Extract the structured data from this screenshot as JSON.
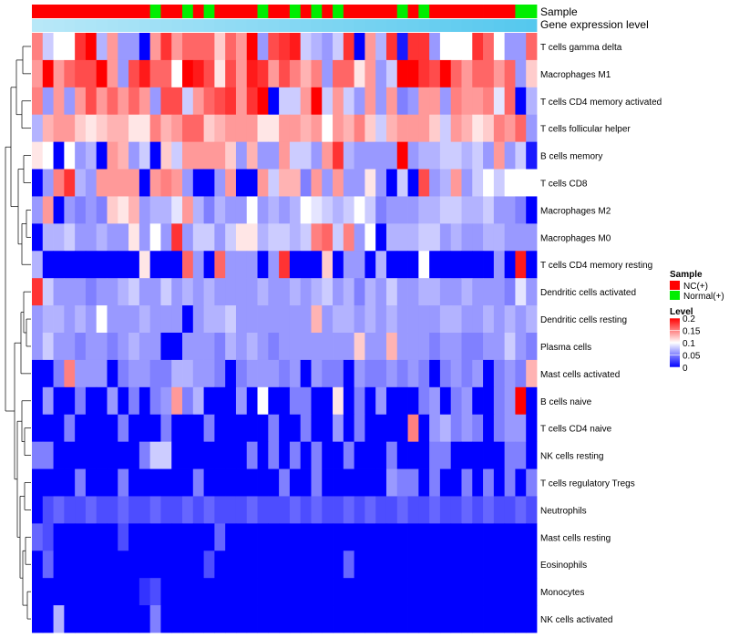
{
  "chart_data": {
    "type": "heatmap",
    "title": "",
    "annotation_labels": {
      "sample": "Sample",
      "gene_expression_level": "Gene expression level"
    },
    "legend": {
      "sample_title": "Sample",
      "sample_items": [
        {
          "label": "NC(+)",
          "color": "#ff0000"
        },
        {
          "label": "Normal(+)",
          "color": "#00ee00"
        }
      ],
      "level_title": "Level",
      "level_ticks": [
        "0.2",
        "0.15",
        "0.1",
        "0.05",
        "0"
      ],
      "level_tick_values": [
        0.2,
        0.15,
        0.1,
        0.05,
        0
      ]
    },
    "color_scale": {
      "min": 0,
      "mid": 0.1,
      "max": 0.2,
      "low": "#0000ff",
      "mid_color": "#ffffff",
      "high": "#ff0000"
    },
    "gene_level_colors": [
      "#b8e8f8",
      "#55c8ee"
    ],
    "sample_groups": [
      0,
      0,
      0,
      0,
      0,
      0,
      0,
      0,
      0,
      0,
      0,
      1,
      0,
      0,
      1,
      0,
      1,
      0,
      0,
      0,
      0,
      1,
      0,
      0,
      1,
      0,
      1,
      0,
      1,
      0,
      0,
      0,
      0,
      0,
      1,
      0,
      1,
      0,
      0,
      0,
      0,
      0,
      0,
      0,
      0,
      1,
      1
    ],
    "rows": [
      "T cells gamma delta",
      "Macrophages M1",
      "T cells CD4 memory activated",
      "T cells follicular helper",
      "B cells memory",
      "T cells CD8",
      "Macrophages M2",
      "Macrophages M0",
      "T cells CD4 memory resting",
      "Dendritic cells activated",
      "Dendritic cells resting",
      "Plasma cells",
      "Mast cells activated",
      "B cells naive",
      "T cells CD4 naive",
      "NK cells resting",
      "T cells regulatory  Tregs",
      "Neutrophils",
      "Mast cells resting",
      "Eosinophils",
      "Monocytes",
      "NK cells activated"
    ],
    "values": [
      [
        0.15,
        0.08,
        0.1,
        0.1,
        0.18,
        0.2,
        0.07,
        0.14,
        0.06,
        0.06,
        0.0,
        0.14,
        0.18,
        0.14,
        0.16,
        0.16,
        0.16,
        0.12,
        0.16,
        0.14,
        0.2,
        0.06,
        0.17,
        0.18,
        0.19,
        0.08,
        0.07,
        0.06,
        0.08,
        0.18,
        0.0,
        0.14,
        0.07,
        0.18,
        0.01,
        0.18,
        0.18,
        0.06,
        0.1,
        0.1,
        0.1,
        0.18,
        0.16,
        0.1,
        0.06,
        0.06,
        0.16
      ],
      [
        0.14,
        0.2,
        0.14,
        0.16,
        0.17,
        0.17,
        0.2,
        0.14,
        0.06,
        0.17,
        0.19,
        0.16,
        0.16,
        0.1,
        0.2,
        0.19,
        0.17,
        0.11,
        0.17,
        0.14,
        0.19,
        0.18,
        0.14,
        0.17,
        0.15,
        0.13,
        0.15,
        0.06,
        0.16,
        0.16,
        0.11,
        0.14,
        0.06,
        0.08,
        0.2,
        0.2,
        0.18,
        0.17,
        0.2,
        0.16,
        0.14,
        0.16,
        0.16,
        0.14,
        0.16,
        0.06,
        0.12
      ],
      [
        0.15,
        0.06,
        0.14,
        0.06,
        0.14,
        0.17,
        0.14,
        0.16,
        0.14,
        0.16,
        0.14,
        0.06,
        0.17,
        0.17,
        0.08,
        0.14,
        0.16,
        0.17,
        0.18,
        0.14,
        0.18,
        0.2,
        0.0,
        0.08,
        0.08,
        0.14,
        0.2,
        0.08,
        0.14,
        0.08,
        0.06,
        0.14,
        0.06,
        0.14,
        0.05,
        0.06,
        0.14,
        0.14,
        0.06,
        0.15,
        0.14,
        0.14,
        0.15,
        0.09,
        0.16,
        0.0,
        0.07
      ],
      [
        0.07,
        0.13,
        0.14,
        0.14,
        0.12,
        0.11,
        0.12,
        0.13,
        0.13,
        0.11,
        0.11,
        0.15,
        0.13,
        0.14,
        0.16,
        0.16,
        0.12,
        0.13,
        0.14,
        0.14,
        0.14,
        0.11,
        0.11,
        0.14,
        0.14,
        0.13,
        0.14,
        0.1,
        0.14,
        0.13,
        0.15,
        0.12,
        0.08,
        0.13,
        0.14,
        0.14,
        0.14,
        0.12,
        0.08,
        0.14,
        0.13,
        0.11,
        0.12,
        0.15,
        0.14,
        0.16,
        0.06
      ],
      [
        0.11,
        0.1,
        0.0,
        0.1,
        0.06,
        0.07,
        0.0,
        0.14,
        0.13,
        0.06,
        0.08,
        0.0,
        0.12,
        0.08,
        0.14,
        0.14,
        0.14,
        0.14,
        0.12,
        0.06,
        0.13,
        0.06,
        0.06,
        0.14,
        0.08,
        0.08,
        0.06,
        0.14,
        0.18,
        0.07,
        0.06,
        0.06,
        0.06,
        0.06,
        0.2,
        0.06,
        0.07,
        0.07,
        0.08,
        0.08,
        0.07,
        0.08,
        0.06,
        0.14,
        0.06,
        0.08,
        0.01
      ],
      [
        0.0,
        0.06,
        0.15,
        0.18,
        0.07,
        0.06,
        0.14,
        0.14,
        0.14,
        0.14,
        0.0,
        0.14,
        0.15,
        0.14,
        0.06,
        0.0,
        0.0,
        0.06,
        0.14,
        0.0,
        0.0,
        0.14,
        0.08,
        0.13,
        0.13,
        0.05,
        0.14,
        0.06,
        0.14,
        0.06,
        0.06,
        0.11,
        0.06,
        0.0,
        0.08,
        0.0,
        0.17,
        0.06,
        0.07,
        0.14,
        0.06,
        0.08,
        0.1,
        0.08,
        0.1,
        0.1,
        0.1
      ],
      [
        0.06,
        0.14,
        0.0,
        0.06,
        0.05,
        0.06,
        0.05,
        0.12,
        0.11,
        0.13,
        0.06,
        0.07,
        0.07,
        0.09,
        0.14,
        0.07,
        0.05,
        0.07,
        0.06,
        0.06,
        0.1,
        0.06,
        0.07,
        0.06,
        0.07,
        0.1,
        0.09,
        0.08,
        0.07,
        0.08,
        0.1,
        0.08,
        0.05,
        0.06,
        0.06,
        0.06,
        0.07,
        0.07,
        0.08,
        0.08,
        0.07,
        0.07,
        0.08,
        0.06,
        0.06,
        0.05,
        0.0
      ],
      [
        0.0,
        0.07,
        0.07,
        0.08,
        0.06,
        0.06,
        0.07,
        0.06,
        0.06,
        0.11,
        0.06,
        0.1,
        0.06,
        0.18,
        0.06,
        0.08,
        0.08,
        0.06,
        0.08,
        0.11,
        0.11,
        0.07,
        0.08,
        0.08,
        0.07,
        0.08,
        0.15,
        0.16,
        0.08,
        0.15,
        0.06,
        0.1,
        0.0,
        0.07,
        0.07,
        0.07,
        0.08,
        0.08,
        0.06,
        0.07,
        0.06,
        0.06,
        0.07,
        0.07,
        0.06,
        0.06,
        0.06
      ],
      [
        0.07,
        0.0,
        0.0,
        0.0,
        0.0,
        0.0,
        0.0,
        0.0,
        0.0,
        0.0,
        0.11,
        0.0,
        0.0,
        0.0,
        0.16,
        0.06,
        0.0,
        0.16,
        0.06,
        0.06,
        0.06,
        0.0,
        0.06,
        0.18,
        0.0,
        0.0,
        0.0,
        0.12,
        0.0,
        0.06,
        0.06,
        0.0,
        0.07,
        0.0,
        0.0,
        0.0,
        0.1,
        0.0,
        0.0,
        0.0,
        0.0,
        0.0,
        0.0,
        0.06,
        0.0,
        0.19,
        0.0
      ],
      [
        0.18,
        0.08,
        0.06,
        0.06,
        0.06,
        0.05,
        0.06,
        0.06,
        0.07,
        0.08,
        0.06,
        0.06,
        0.08,
        0.06,
        0.07,
        0.06,
        0.07,
        0.06,
        0.06,
        0.06,
        0.06,
        0.07,
        0.06,
        0.06,
        0.07,
        0.06,
        0.07,
        0.08,
        0.06,
        0.07,
        0.05,
        0.07,
        0.06,
        0.08,
        0.06,
        0.06,
        0.07,
        0.07,
        0.06,
        0.06,
        0.07,
        0.06,
        0.06,
        0.06,
        0.05,
        0.09,
        0.06
      ],
      [
        0.06,
        0.07,
        0.07,
        0.06,
        0.07,
        0.06,
        0.1,
        0.06,
        0.06,
        0.06,
        0.07,
        0.06,
        0.06,
        0.06,
        0.0,
        0.06,
        0.07,
        0.07,
        0.08,
        0.06,
        0.06,
        0.06,
        0.06,
        0.06,
        0.06,
        0.06,
        0.13,
        0.06,
        0.07,
        0.07,
        0.06,
        0.07,
        0.06,
        0.07,
        0.06,
        0.06,
        0.06,
        0.06,
        0.07,
        0.07,
        0.06,
        0.06,
        0.07,
        0.06,
        0.07,
        0.06,
        0.07
      ],
      [
        0.06,
        0.08,
        0.06,
        0.06,
        0.05,
        0.06,
        0.06,
        0.05,
        0.06,
        0.07,
        0.06,
        0.06,
        0.0,
        0.0,
        0.06,
        0.06,
        0.06,
        0.05,
        0.07,
        0.06,
        0.07,
        0.06,
        0.05,
        0.06,
        0.06,
        0.06,
        0.06,
        0.06,
        0.06,
        0.06,
        0.12,
        0.06,
        0.06,
        0.13,
        0.06,
        0.06,
        0.06,
        0.05,
        0.06,
        0.06,
        0.05,
        0.05,
        0.06,
        0.06,
        0.08,
        0.06,
        0.05
      ],
      [
        0.0,
        0.0,
        0.05,
        0.15,
        0.06,
        0.06,
        0.06,
        0.0,
        0.05,
        0.06,
        0.06,
        0.05,
        0.05,
        0.07,
        0.07,
        0.06,
        0.06,
        0.05,
        0.0,
        0.05,
        0.06,
        0.06,
        0.06,
        0.05,
        0.06,
        0.0,
        0.06,
        0.05,
        0.05,
        0.0,
        0.06,
        0.05,
        0.05,
        0.06,
        0.05,
        0.06,
        0.05,
        0.0,
        0.05,
        0.06,
        0.05,
        0.06,
        0.0,
        0.05,
        0.06,
        0.05,
        0.13
      ],
      [
        0.0,
        0.06,
        0.0,
        0.0,
        0.05,
        0.0,
        0.0,
        0.06,
        0.0,
        0.05,
        0.0,
        0.05,
        0.06,
        0.14,
        0.05,
        0.07,
        0.0,
        0.0,
        0.0,
        0.06,
        0.0,
        0.1,
        0.0,
        0.0,
        0.05,
        0.05,
        0.0,
        0.0,
        0.11,
        0.0,
        0.05,
        0.0,
        0.06,
        0.0,
        0.0,
        0.0,
        0.05,
        0.06,
        0.0,
        0.05,
        0.06,
        0.0,
        0.0,
        0.05,
        0.06,
        0.2,
        0.0
      ],
      [
        0.0,
        0.0,
        0.0,
        0.05,
        0.0,
        0.0,
        0.0,
        0.0,
        0.05,
        0.0,
        0.0,
        0.0,
        0.05,
        0.0,
        0.0,
        0.0,
        0.05,
        0.0,
        0.0,
        0.0,
        0.0,
        0.0,
        0.05,
        0.0,
        0.0,
        0.05,
        0.0,
        0.0,
        0.06,
        0.0,
        0.05,
        0.0,
        0.0,
        0.0,
        0.0,
        0.15,
        0.0,
        0.06,
        0.07,
        0.05,
        0.06,
        0.05,
        0.0,
        0.05,
        0.06,
        0.06,
        0.0
      ],
      [
        0.05,
        0.05,
        0.0,
        0.0,
        0.0,
        0.0,
        0.0,
        0.0,
        0.0,
        0.0,
        0.05,
        0.08,
        0.08,
        0.0,
        0.0,
        0.0,
        0.0,
        0.0,
        0.0,
        0.0,
        0.05,
        0.0,
        0.05,
        0.0,
        0.05,
        0.0,
        0.05,
        0.0,
        0.0,
        0.05,
        0.0,
        0.0,
        0.0,
        0.05,
        0.0,
        0.0,
        0.0,
        0.05,
        0.05,
        0.0,
        0.0,
        0.0,
        0.0,
        0.0,
        0.05,
        0.05,
        0.0
      ],
      [
        0.0,
        0.0,
        0.0,
        0.0,
        0.05,
        0.0,
        0.0,
        0.0,
        0.05,
        0.0,
        0.0,
        0.0,
        0.0,
        0.0,
        0.0,
        0.05,
        0.0,
        0.0,
        0.0,
        0.0,
        0.0,
        0.0,
        0.0,
        0.05,
        0.0,
        0.0,
        0.05,
        0.0,
        0.0,
        0.0,
        0.0,
        0.0,
        0.0,
        0.06,
        0.05,
        0.05,
        0.0,
        0.05,
        0.0,
        0.0,
        0.05,
        0.0,
        0.05,
        0.0,
        0.05,
        0.0,
        0.05
      ],
      [
        0.0,
        0.03,
        0.04,
        0.03,
        0.03,
        0.04,
        0.03,
        0.03,
        0.04,
        0.03,
        0.03,
        0.04,
        0.03,
        0.03,
        0.04,
        0.03,
        0.04,
        0.03,
        0.03,
        0.03,
        0.04,
        0.03,
        0.03,
        0.03,
        0.04,
        0.03,
        0.04,
        0.03,
        0.03,
        0.04,
        0.03,
        0.04,
        0.03,
        0.03,
        0.04,
        0.03,
        0.03,
        0.04,
        0.03,
        0.03,
        0.04,
        0.03,
        0.04,
        0.03,
        0.03,
        0.04,
        0.03
      ],
      [
        0.04,
        0.03,
        0.0,
        0.0,
        0.0,
        0.0,
        0.0,
        0.0,
        0.03,
        0.0,
        0.0,
        0.0,
        0.0,
        0.0,
        0.0,
        0.0,
        0.0,
        0.04,
        0.0,
        0.0,
        0.0,
        0.0,
        0.0,
        0.0,
        0.0,
        0.0,
        0.0,
        0.0,
        0.0,
        0.0,
        0.0,
        0.0,
        0.0,
        0.0,
        0.0,
        0.0,
        0.0,
        0.0,
        0.0,
        0.0,
        0.0,
        0.0,
        0.0,
        0.0,
        0.0,
        0.0,
        0.0
      ],
      [
        0.0,
        0.04,
        0.0,
        0.0,
        0.0,
        0.0,
        0.0,
        0.0,
        0.0,
        0.0,
        0.0,
        0.0,
        0.0,
        0.0,
        0.0,
        0.0,
        0.03,
        0.0,
        0.0,
        0.0,
        0.0,
        0.0,
        0.0,
        0.0,
        0.0,
        0.0,
        0.0,
        0.0,
        0.0,
        0.04,
        0.0,
        0.0,
        0.0,
        0.0,
        0.0,
        0.0,
        0.0,
        0.0,
        0.0,
        0.0,
        0.0,
        0.0,
        0.0,
        0.0,
        0.0,
        0.0,
        0.0
      ],
      [
        0.0,
        0.0,
        0.0,
        0.0,
        0.0,
        0.0,
        0.0,
        0.0,
        0.0,
        0.0,
        0.02,
        0.03,
        0.0,
        0.0,
        0.0,
        0.0,
        0.0,
        0.0,
        0.0,
        0.0,
        0.0,
        0.0,
        0.0,
        0.0,
        0.0,
        0.0,
        0.0,
        0.0,
        0.0,
        0.0,
        0.0,
        0.0,
        0.0,
        0.0,
        0.0,
        0.0,
        0.0,
        0.0,
        0.0,
        0.0,
        0.0,
        0.0,
        0.0,
        0.0,
        0.0,
        0.0,
        0.0
      ],
      [
        0.0,
        0.0,
        0.07,
        0.0,
        0.0,
        0.0,
        0.0,
        0.0,
        0.0,
        0.0,
        0.0,
        0.05,
        0.0,
        0.0,
        0.0,
        0.0,
        0.0,
        0.0,
        0.0,
        0.0,
        0.0,
        0.0,
        0.0,
        0.0,
        0.0,
        0.0,
        0.0,
        0.0,
        0.0,
        0.0,
        0.0,
        0.0,
        0.0,
        0.0,
        0.0,
        0.0,
        0.0,
        0.0,
        0.0,
        0.0,
        0.0,
        0.0,
        0.0,
        0.0,
        0.0,
        0.0,
        0.0
      ]
    ]
  }
}
